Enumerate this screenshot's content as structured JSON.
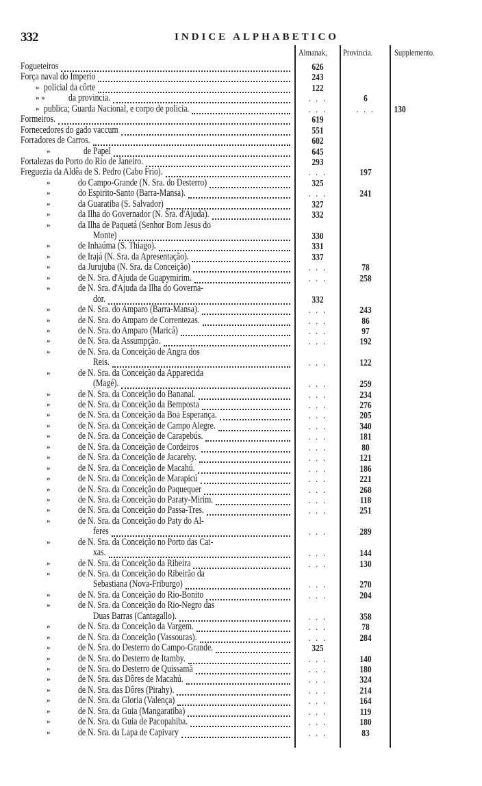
{
  "header": {
    "page_number": "332",
    "title": "INDICE ALPHABETICO"
  },
  "columns": [
    "Almanak,",
    "Provincia.",
    "Supplemento."
  ],
  "rows": [
    {
      "level": 0,
      "marker": "",
      "text": "Fogueteiros",
      "almanak": "626"
    },
    {
      "level": 0,
      "marker": "",
      "text": "Força naval do Imperio",
      "almanak": "243"
    },
    {
      "level": 1,
      "marker": "»",
      "text": "policial da côrte",
      "almanak": "122"
    },
    {
      "level": 3,
      "marker": "»       »",
      "text": "da provincia.",
      "almanak": ". . .",
      "provincia": "6"
    },
    {
      "level": 1,
      "marker": "»",
      "text": "publica; Guarda Nacional, e corpo de policia.",
      "almanak": ". . .",
      "provincia": ". . .",
      "supplemento": "130"
    },
    {
      "level": 0,
      "marker": "",
      "text": "Formeiros.",
      "almanak": "619"
    },
    {
      "level": 0,
      "marker": "",
      "text": "Fornecedores do gado vaccum",
      "almanak": "551"
    },
    {
      "level": 0,
      "marker": "",
      "text": "Forradores de Carros.",
      "almanak": "602"
    },
    {
      "level": 4,
      "marker": "»",
      "text": "de Papel",
      "almanak": "645"
    },
    {
      "level": 0,
      "marker": "",
      "text": "Fortalezas do Porto do Rio de Janeiro.",
      "almanak": "293"
    },
    {
      "level": 0,
      "marker": "",
      "text": "Freguezia da Aldêa de S. Pedro (Cabo Frio).",
      "almanak": ". . .",
      "provincia": "197"
    },
    {
      "level": 2,
      "marker": "»",
      "text": "do Campo-Grande (N. Sra. do Desterro)",
      "almanak": "325"
    },
    {
      "level": 2,
      "marker": "»",
      "text": "do Espirito-Santo (Barra-Mansa).",
      "almanak": ". . .",
      "provincia": "241"
    },
    {
      "level": 2,
      "marker": "»",
      "text": "da Guaratiba (S. Salvador)",
      "almanak": "327"
    },
    {
      "level": 2,
      "marker": "»",
      "text": "da Ilha do Governador (N. Sra. d'Ajuda).",
      "almanak": "332"
    },
    {
      "level": 2,
      "marker": "»",
      "text": "da Ilha de Paquetá (Senhor Bom Jesus do",
      "cont": "Monte)",
      "almanak": "330"
    },
    {
      "level": 2,
      "marker": "»",
      "text": "de Inhaúma (S. Thiago).",
      "almanak": "331"
    },
    {
      "level": 2,
      "marker": "»",
      "text": "de Irajá (N. Sra. da Apresentação).",
      "almanak": "337"
    },
    {
      "level": 2,
      "marker": "»",
      "text": "da Jurujuba (N. Sra. da Conceição)",
      "almanak": ". . .",
      "provincia": "78"
    },
    {
      "level": 2,
      "marker": "»",
      "text": "de N. Sra. d'Ajuda de Guapymirim.",
      "almanak": ". . .",
      "provincia": "258"
    },
    {
      "level": 2,
      "marker": "»",
      "text": "de N. Sra. d'Ajuda da Ilha do Governa-",
      "cont": "dor.",
      "almanak": "332"
    },
    {
      "level": 2,
      "marker": "»",
      "text": "de N. Sra. do Amparo (Barra-Mansa).",
      "almanak": ". . .",
      "provincia": "243"
    },
    {
      "level": 2,
      "marker": "»",
      "text": "de N. Sra. do Amparo de Correntezas.",
      "almanak": ". . .",
      "provincia": "86"
    },
    {
      "level": 2,
      "marker": "»",
      "text": "de N. Sra. do Amparo (Maricá)",
      "almanak": ". . .",
      "provincia": "97"
    },
    {
      "level": 2,
      "marker": "»",
      "text": "de N. Sra. da Assumpção.",
      "almanak": ". . .",
      "provincia": "192"
    },
    {
      "level": 2,
      "marker": "»",
      "text": "de N. Sra. da Conceição de Angra dos",
      "cont": "Reis.",
      "almanak": ". . .",
      "provincia": "122"
    },
    {
      "level": 2,
      "marker": "»",
      "text": "de N. Sra. da Conceição da Apparecida",
      "cont": "(Magé).",
      "almanak": ". . .",
      "provincia": "259"
    },
    {
      "level": 2,
      "marker": "»",
      "text": "de N. Sra. da Conceição do Bananal.",
      "almanak": ". . .",
      "provincia": "234"
    },
    {
      "level": 2,
      "marker": "»",
      "text": "de N. Sra. da Conceição da Bemposta",
      "almanak": ". . .",
      "provincia": "276"
    },
    {
      "level": 2,
      "marker": "»",
      "text": "de N. Sra. da Conceição da Boa Esperança.",
      "almanak": ". . .",
      "provincia": "205"
    },
    {
      "level": 2,
      "marker": "»",
      "text": "de N. Sra. da Conceição de Campo Alegre.",
      "almanak": ". . .",
      "provincia": "340"
    },
    {
      "level": 2,
      "marker": "»",
      "text": "de N. Sra. da Conceição de Carapebús.",
      "almanak": ". . .",
      "provincia": "181"
    },
    {
      "level": 2,
      "marker": "»",
      "text": "de N. Sra. da Conceição de Cordeiros",
      "almanak": ". . .",
      "provincia": "80"
    },
    {
      "level": 2,
      "marker": "»",
      "text": "de N. Sra. da Conceição de Jacarehy.",
      "almanak": ". . .",
      "provincia": "121"
    },
    {
      "level": 2,
      "marker": "»",
      "text": "de N. Sra. da Conceição de Macahú.",
      "almanak": ". . .",
      "provincia": "186"
    },
    {
      "level": 2,
      "marker": "»",
      "text": "de N. Sra. da Conceição de Marapicú",
      "almanak": ". . .",
      "provincia": "221"
    },
    {
      "level": 2,
      "marker": "»",
      "text": "de N. Sra. da Conceição do Paquequer",
      "almanak": ". . .",
      "provincia": "268"
    },
    {
      "level": 2,
      "marker": "»",
      "text": "de N. Sra. da Conceição do Paraty-Mirim.",
      "almanak": ". . .",
      "provincia": "118"
    },
    {
      "level": 2,
      "marker": "»",
      "text": "de N. Sra. da Conceição do Passa-Tres.",
      "almanak": ". . .",
      "provincia": "251"
    },
    {
      "level": 2,
      "marker": "»",
      "text": "de N. Sra. da Conceição do Paty do Al-",
      "cont": "feres",
      "almanak": ". . .",
      "provincia": "289"
    },
    {
      "level": 2,
      "marker": "»",
      "text": "de N. Sra. da Conceição no Porto das Cai-",
      "cont": "xas.",
      "almanak": ". . .",
      "provincia": "144"
    },
    {
      "level": 2,
      "marker": "»",
      "text": "de N. Sra. da Conceição da Ribeira",
      "almanak": ". . .",
      "provincia": "130"
    },
    {
      "level": 2,
      "marker": "»",
      "text": "de N. Sra. da Conceição do Ribeirão da",
      "cont": "Sebastiana (Nova-Friburgo)",
      "almanak": ". . .",
      "provincia": "270"
    },
    {
      "level": 2,
      "marker": "»",
      "text": "de N. Sra. da Conceição do Rio-Bonito",
      "almanak": ". . .",
      "provincia": "204"
    },
    {
      "level": 2,
      "marker": "»",
      "text": "de N. Sra. da Conceição do Rio-Negro das",
      "cont": "Duas Barras (Cantagallo).",
      "almanak": ". . .",
      "provincia": "358"
    },
    {
      "level": 2,
      "marker": "»",
      "text": "de N. Sra. da Conceição da Vargem.",
      "almanak": ". . .",
      "provincia": "78"
    },
    {
      "level": 2,
      "marker": "»",
      "text": "de N. Sra. da Conceição (Vassouras).",
      "almanak": ". . .",
      "provincia": "284"
    },
    {
      "level": 2,
      "marker": "»",
      "text": "de N. Sra. do Desterro do Campo-Grande.",
      "almanak": "325"
    },
    {
      "level": 2,
      "marker": "»",
      "text": "de N. Sra. do Desterro de Itamby.",
      "almanak": ". . .",
      "provincia": "140"
    },
    {
      "level": 2,
      "marker": "»",
      "text": "de N. Sra. do Desterro de Quissamã",
      "almanak": ". . .",
      "provincia": "180"
    },
    {
      "level": 2,
      "marker": "»",
      "text": "de N. Sra. das Dôres de Macahú.",
      "almanak": ". . .",
      "provincia": "324"
    },
    {
      "level": 2,
      "marker": "»",
      "text": "de N. Sra. das Dôres (Pirahy).",
      "almanak": ". . .",
      "provincia": "214"
    },
    {
      "level": 2,
      "marker": "»",
      "text": "de N. Sra. da Gloria (Valença)",
      "almanak": ". . .",
      "provincia": "164"
    },
    {
      "level": 2,
      "marker": "»",
      "text": "de N. Sra. da Guia (Mangaratiba)",
      "almanak": ". . .",
      "provincia": "119"
    },
    {
      "level": 2,
      "marker": "»",
      "text": "de N. Sra. da Guia de Pacopahiba.",
      "almanak": ". . .",
      "provincia": "180"
    },
    {
      "level": 2,
      "marker": "»",
      "text": "de N. Sra. da Lapa de Capivary",
      "almanak": ". . .",
      "provincia": "83"
    }
  ]
}
